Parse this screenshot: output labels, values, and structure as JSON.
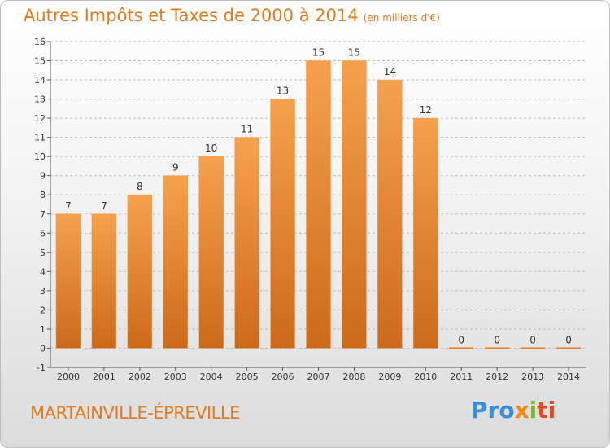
{
  "header": {
    "title": "Autres Impôts et Taxes de 2000 à 2014",
    "subtitle": "(en milliers d'€)"
  },
  "footer": {
    "commune": "MARTAINVILLE-ÉPREVILLE",
    "logo_parts": [
      "Pro",
      "x",
      "i",
      "ti"
    ]
  },
  "colors": {
    "bar_top": "#f5a14e",
    "bar_bottom": "#cc6a1a",
    "accent": "#e07b1e",
    "grid": "#bbbbbb"
  },
  "chart_data": {
    "type": "bar",
    "title": "Autres Impôts et Taxes de 2000 à 2014",
    "subtitle": "(en milliers d'€)",
    "categories": [
      "2000",
      "2001",
      "2002",
      "2003",
      "2004",
      "2005",
      "2006",
      "2007",
      "2008",
      "2009",
      "2010",
      "2011",
      "2012",
      "2013",
      "2014"
    ],
    "values": [
      7,
      7,
      8,
      9,
      10,
      11,
      13,
      15,
      15,
      14,
      12,
      0,
      0,
      0,
      0
    ],
    "ylim": [
      -1,
      16
    ],
    "yticks": [
      -1,
      0,
      1,
      2,
      3,
      4,
      5,
      6,
      7,
      8,
      9,
      10,
      11,
      12,
      13,
      14,
      15,
      16
    ],
    "grid": "horizontal dashed",
    "legend": "none"
  }
}
